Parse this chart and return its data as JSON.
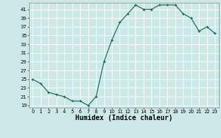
{
  "x": [
    0,
    1,
    2,
    3,
    4,
    5,
    6,
    7,
    8,
    9,
    10,
    11,
    12,
    13,
    14,
    15,
    16,
    17,
    18,
    19,
    20,
    21,
    22,
    23
  ],
  "y": [
    25,
    24,
    22,
    21.5,
    21,
    20,
    20,
    19,
    21,
    29,
    34,
    38,
    40,
    42,
    41,
    41,
    42,
    42,
    42,
    40,
    39,
    36,
    37,
    35.5
  ],
  "line_color": "#1a6b5a",
  "marker": "+",
  "marker_size": 3,
  "marker_color": "#1a6b5a",
  "bg_color": "#cce9e7",
  "grid_color": "#ffffff",
  "xlabel": "Humidex (Indice chaleur)",
  "xlabel_fontsize": 7,
  "yticks": [
    19,
    21,
    23,
    25,
    27,
    29,
    31,
    33,
    35,
    37,
    39,
    41
  ],
  "xtick_labels": [
    "0",
    "1",
    "2",
    "3",
    "4",
    "5",
    "6",
    "7",
    "8",
    "9",
    "10",
    "11",
    "12",
    "13",
    "14",
    "15",
    "16",
    "17",
    "18",
    "19",
    "20",
    "21",
    "22",
    "23"
  ],
  "xlim": [
    -0.5,
    23.5
  ],
  "ylim": [
    18.5,
    42.5
  ],
  "tick_fontsize": 5,
  "spine_color": "#888888",
  "linewidth": 0.9
}
